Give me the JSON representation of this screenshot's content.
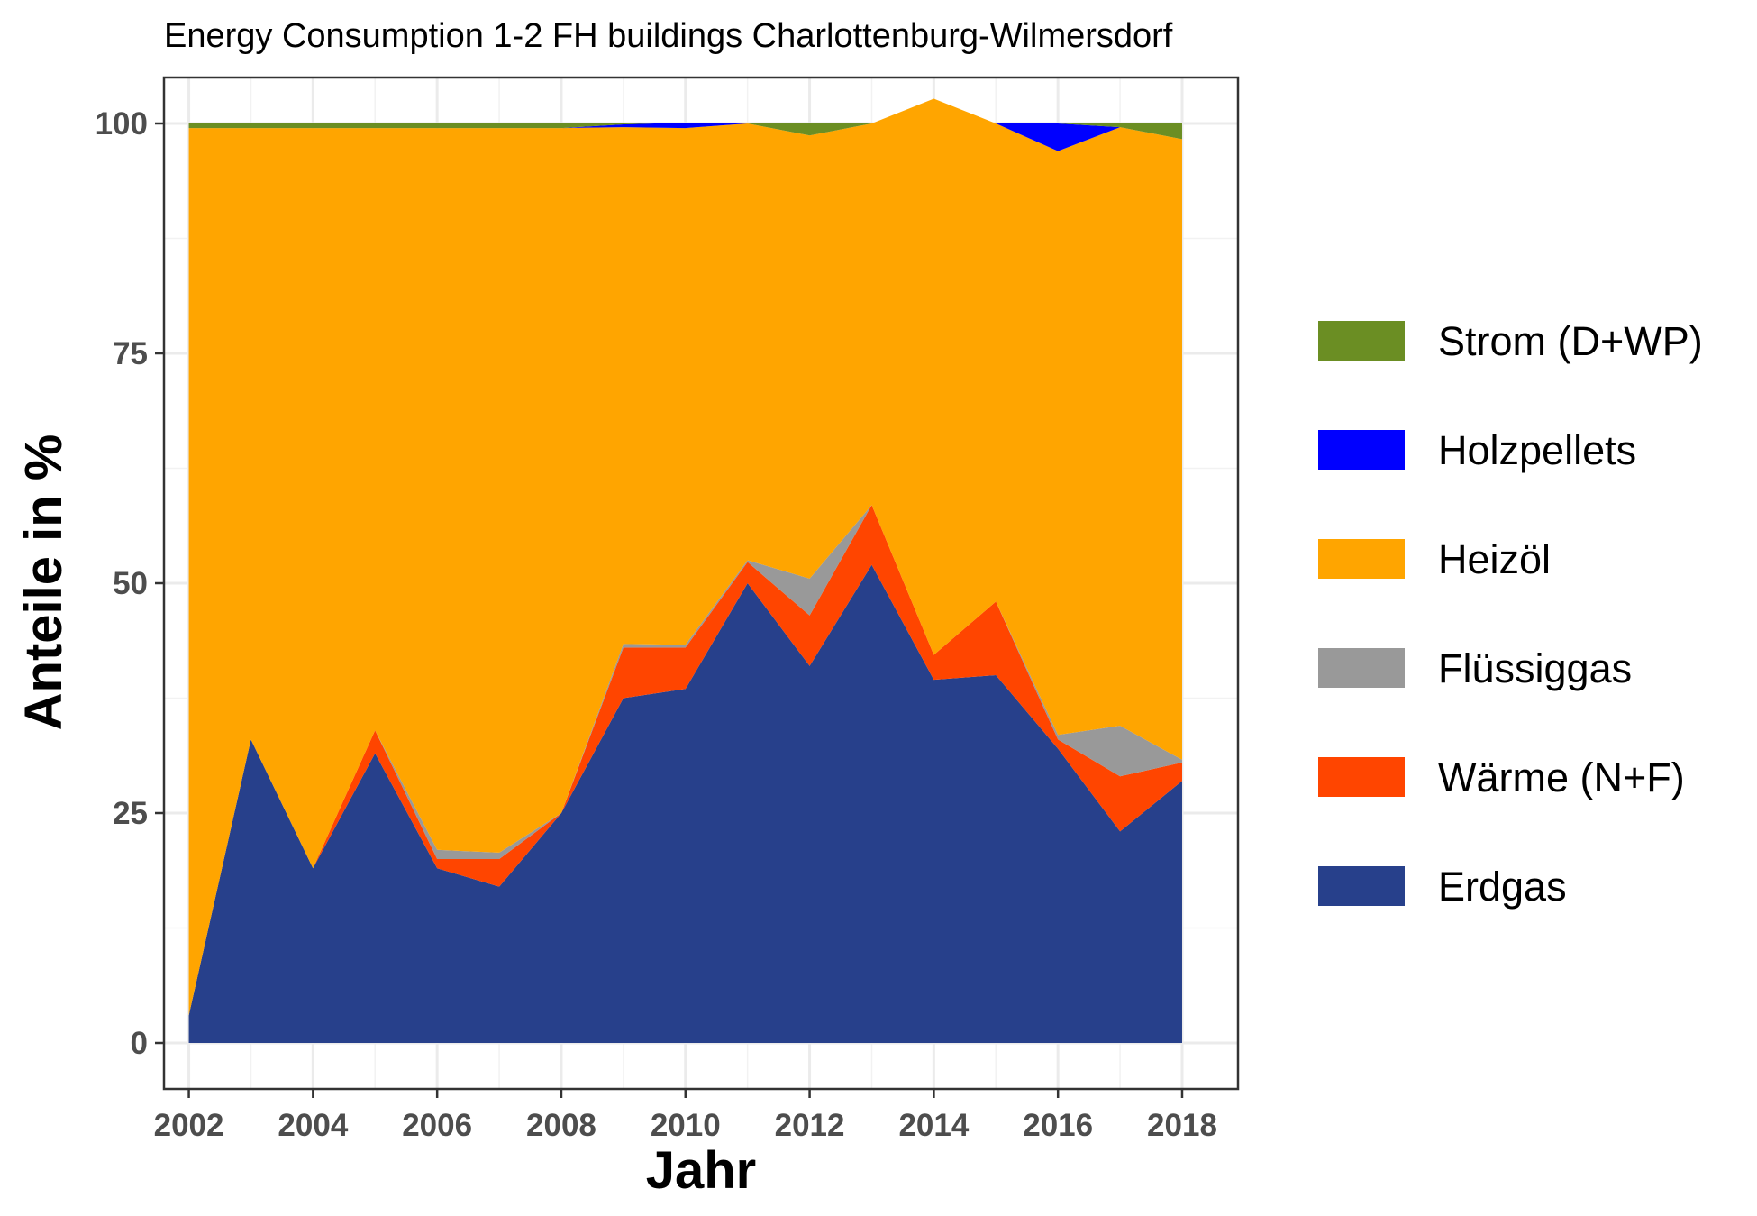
{
  "chart_data": {
    "type": "area",
    "stacked": true,
    "title": "Energy Consumption 1-2 FH buildings Charlottenburg-Wilmersdorf",
    "xlabel": "Jahr",
    "ylabel": "Anteile in %",
    "x": [
      2002,
      2003,
      2004,
      2005,
      2006,
      2007,
      2008,
      2009,
      2010,
      2011,
      2012,
      2013,
      2014,
      2015,
      2016,
      2017,
      2018
    ],
    "xlim": [
      2001.6,
      2018.9
    ],
    "ylim": [
      -5,
      105
    ],
    "x_ticks": [
      2002,
      2004,
      2006,
      2008,
      2010,
      2012,
      2014,
      2016,
      2018
    ],
    "x_tick_labels": [
      "2002",
      "2004",
      "2006",
      "2008",
      "2010",
      "2012",
      "2014",
      "2016",
      "2018"
    ],
    "y_ticks": [
      0,
      25,
      50,
      75,
      100
    ],
    "y_tick_labels": [
      "0",
      "25",
      "50",
      "75",
      "100"
    ],
    "grid": true,
    "legend_position": "right",
    "series": [
      {
        "name": "Erdgas",
        "color": "#27408B",
        "values": [
          3,
          33,
          19,
          31.5,
          19,
          17,
          25,
          37.5,
          38.5,
          50,
          41,
          52,
          39.5,
          40,
          32,
          23,
          28.5
        ]
      },
      {
        "name": "Wärme (N+F)",
        "color": "#FF4500",
        "values": [
          0,
          0,
          0,
          2.5,
          1,
          3,
          0,
          5.5,
          4.5,
          2.3,
          5.5,
          6.5,
          2.7,
          8,
          1,
          6,
          2
        ]
      },
      {
        "name": "Flüssiggas",
        "color": "#999999",
        "values": [
          0,
          0,
          0,
          0,
          1,
          0.7,
          0,
          0.4,
          0.3,
          0.2,
          4,
          0,
          0,
          0,
          0.5,
          5.5,
          0.3
        ]
      },
      {
        "name": "Heizöl",
        "color": "#FFA500",
        "values": [
          96.5,
          66.5,
          80.5,
          65.5,
          78.5,
          78.8,
          74.5,
          56.2,
          56.2,
          47.5,
          48.2,
          41.5,
          60.5,
          52,
          63.5,
          65.1,
          67.5
        ]
      },
      {
        "name": "Holzpellets",
        "color": "#0000FF",
        "values": [
          0,
          0,
          0,
          0,
          0,
          0,
          0,
          0.3,
          0.6,
          0,
          0,
          0,
          0,
          0,
          3,
          0,
          0
        ]
      },
      {
        "name": "Strom (D+WP)",
        "color": "#6B8E23",
        "values": [
          0.5,
          0.5,
          0.5,
          0.5,
          0.5,
          0.5,
          0.5,
          0.1,
          0,
          0,
          1.3,
          0,
          0,
          0,
          0,
          0.4,
          1.7
        ]
      }
    ],
    "legend_order": [
      "Strom (D+WP)",
      "Holzpellets",
      "Heizöl",
      "Flüssiggas",
      "Wärme (N+F)",
      "Erdgas"
    ]
  }
}
